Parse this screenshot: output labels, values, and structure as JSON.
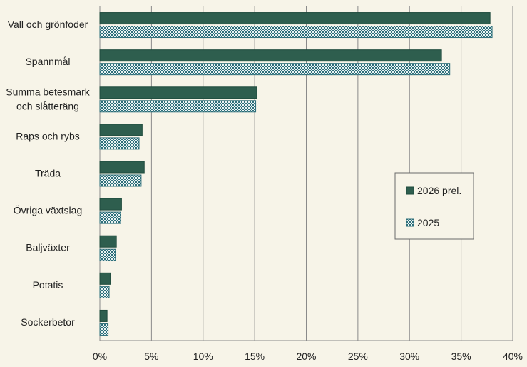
{
  "chart_data": {
    "type": "bar",
    "orientation": "horizontal",
    "categories": [
      [
        "Vall och grönfoder"
      ],
      [
        "Spannmål"
      ],
      [
        "Summa betesmark",
        "och slåtteräng"
      ],
      [
        "Raps och rybs"
      ],
      [
        "Träda"
      ],
      [
        "Övriga växtslag"
      ],
      [
        "Baljväxter"
      ],
      [
        "Potatis"
      ],
      [
        "Sockerbetor"
      ]
    ],
    "series": [
      {
        "name": "2026 prel.",
        "values": [
          37.8,
          33.1,
          15.2,
          4.1,
          4.3,
          2.1,
          1.6,
          1.0,
          0.7
        ],
        "color": "#2e5e4e",
        "pattern": "solid"
      },
      {
        "name": "2025",
        "values": [
          38.0,
          33.9,
          15.1,
          3.8,
          4.0,
          2.0,
          1.5,
          0.9,
          0.8
        ],
        "color": "#2e6f7a",
        "pattern": "checker"
      }
    ],
    "xlim": [
      0,
      40
    ],
    "xticks": [
      "0%",
      "5%",
      "10%",
      "15%",
      "20%",
      "25%",
      "30%",
      "35%",
      "40%"
    ],
    "grid": true,
    "legend_position": "right"
  }
}
